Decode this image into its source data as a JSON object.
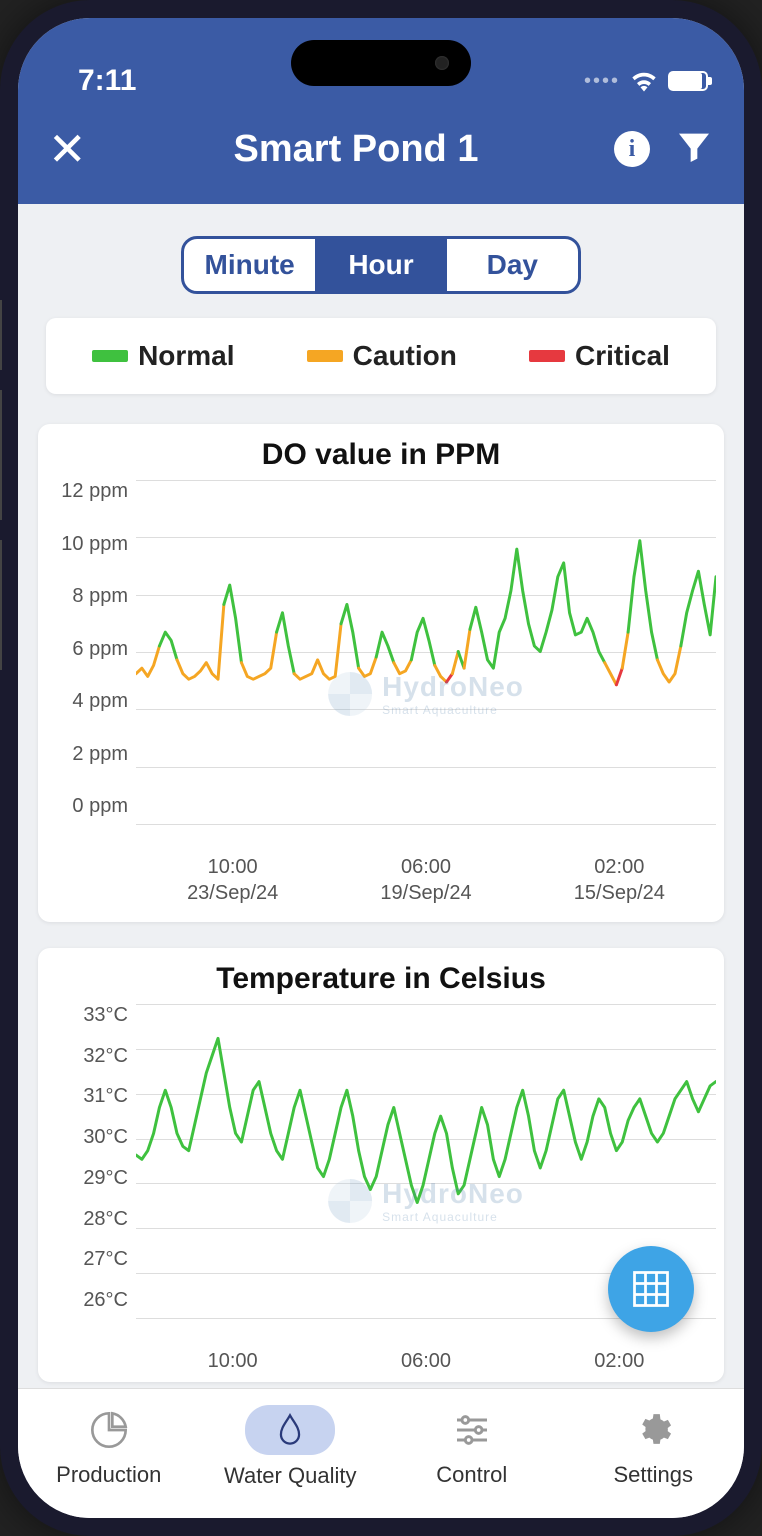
{
  "status": {
    "time": "7:11"
  },
  "header": {
    "title": "Smart Pond 1"
  },
  "segments": {
    "items": [
      "Minute",
      "Hour",
      "Day"
    ],
    "active_index": 1
  },
  "legend": {
    "items": [
      {
        "label": "Normal",
        "color": "#3fc13f"
      },
      {
        "label": "Caution",
        "color": "#f5a623"
      },
      {
        "label": "Critical",
        "color": "#e6393f"
      }
    ]
  },
  "watermark": {
    "brand": "HydroNeo",
    "tagline": "Smart Aquaculture"
  },
  "charts": {
    "do": {
      "type": "line",
      "title": "DO value in PPM",
      "ylim": [
        0,
        12
      ],
      "ytick_step": 2,
      "yunit": " ppm",
      "grid_color": "#dddddd",
      "line_colors": {
        "normal": "#3fc13f",
        "caution": "#f5a623",
        "critical": "#e6393f"
      },
      "line_width": 3,
      "background_color": "#ffffff",
      "xticks": [
        {
          "time": "10:00",
          "date": "23/Sep/24"
        },
        {
          "time": "06:00",
          "date": "19/Sep/24"
        },
        {
          "time": "02:00",
          "date": "15/Sep/24"
        }
      ],
      "values": [
        5.0,
        5.2,
        4.9,
        5.3,
        6.0,
        6.5,
        6.2,
        5.5,
        5.0,
        4.8,
        4.9,
        5.1,
        5.4,
        5.0,
        4.8,
        7.5,
        8.2,
        7.0,
        5.4,
        4.9,
        4.8,
        4.9,
        5.0,
        5.2,
        6.5,
        7.2,
        6.0,
        5.0,
        4.8,
        4.9,
        5.0,
        5.5,
        5.0,
        4.8,
        4.9,
        6.8,
        7.5,
        6.5,
        5.2,
        4.9,
        5.0,
        5.6,
        6.5,
        6.0,
        5.4,
        5.0,
        5.1,
        5.5,
        6.5,
        7.0,
        6.2,
        5.3,
        4.9,
        4.7,
        5.0,
        5.8,
        5.2,
        6.6,
        7.4,
        6.5,
        5.5,
        5.2,
        6.5,
        7.0,
        8.0,
        9.5,
        8.0,
        6.8,
        6.0,
        5.8,
        6.5,
        7.3,
        8.5,
        9.0,
        7.2,
        6.4,
        6.5,
        7.0,
        6.5,
        5.8,
        5.4,
        5.0,
        4.6,
        5.2,
        6.5,
        8.5,
        9.8,
        8.0,
        6.5,
        5.5,
        5.0,
        4.7,
        5.0,
        6.0,
        7.2,
        8.0,
        8.7,
        7.5,
        6.4,
        8.5
      ],
      "status": [
        "c",
        "c",
        "c",
        "c",
        "n",
        "n",
        "n",
        "c",
        "c",
        "c",
        "c",
        "c",
        "c",
        "c",
        "c",
        "n",
        "n",
        "n",
        "c",
        "c",
        "c",
        "c",
        "c",
        "c",
        "n",
        "n",
        "n",
        "c",
        "c",
        "c",
        "c",
        "c",
        "c",
        "c",
        "c",
        "n",
        "n",
        "n",
        "c",
        "c",
        "c",
        "n",
        "n",
        "n",
        "c",
        "c",
        "c",
        "n",
        "n",
        "n",
        "n",
        "c",
        "c",
        "r",
        "c",
        "n",
        "c",
        "n",
        "n",
        "n",
        "n",
        "n",
        "n",
        "n",
        "n",
        "n",
        "n",
        "n",
        "n",
        "n",
        "n",
        "n",
        "n",
        "n",
        "n",
        "n",
        "n",
        "n",
        "n",
        "n",
        "c",
        "c",
        "r",
        "c",
        "n",
        "n",
        "n",
        "n",
        "n",
        "c",
        "c",
        "c",
        "c",
        "n",
        "n",
        "n",
        "n",
        "n",
        "n",
        "n"
      ]
    },
    "temp": {
      "type": "line",
      "title": "Temperature in Celsius",
      "ylim": [
        26,
        33
      ],
      "ytick_step": 1,
      "yunit": "°C",
      "grid_color": "#dddddd",
      "line_color": "#3fc13f",
      "line_width": 3,
      "background_color": "#ffffff",
      "xticks": [
        {
          "time": "10:00",
          "date": ""
        },
        {
          "time": "06:00",
          "date": ""
        },
        {
          "time": "02:00",
          "date": ""
        }
      ],
      "values": [
        29.5,
        29.4,
        29.6,
        30.0,
        30.6,
        31.0,
        30.6,
        30.0,
        29.7,
        29.6,
        30.2,
        30.8,
        31.4,
        31.8,
        32.2,
        31.4,
        30.6,
        30.0,
        29.8,
        30.4,
        31.0,
        31.2,
        30.6,
        30.0,
        29.6,
        29.4,
        30.0,
        30.6,
        31.0,
        30.4,
        29.8,
        29.2,
        29.0,
        29.4,
        30.0,
        30.6,
        31.0,
        30.4,
        29.6,
        29.0,
        28.7,
        29.0,
        29.6,
        30.2,
        30.6,
        30.0,
        29.4,
        28.8,
        28.4,
        28.8,
        29.4,
        30.0,
        30.4,
        30.0,
        29.2,
        28.6,
        28.8,
        29.4,
        30.0,
        30.6,
        30.2,
        29.4,
        29.0,
        29.4,
        30.0,
        30.6,
        31.0,
        30.4,
        29.6,
        29.2,
        29.6,
        30.2,
        30.8,
        31.0,
        30.4,
        29.8,
        29.4,
        29.8,
        30.4,
        30.8,
        30.6,
        30.0,
        29.6,
        29.8,
        30.3,
        30.6,
        30.8,
        30.4,
        30.0,
        29.8,
        30.0,
        30.4,
        30.8,
        31.0,
        31.2,
        30.8,
        30.5,
        30.8,
        31.1,
        31.2
      ]
    }
  },
  "nav": {
    "items": [
      {
        "label": "Production",
        "icon": "pie"
      },
      {
        "label": "Water Quality",
        "icon": "drop"
      },
      {
        "label": "Control",
        "icon": "sliders"
      },
      {
        "label": "Settings",
        "icon": "gear"
      }
    ],
    "active_index": 1
  }
}
